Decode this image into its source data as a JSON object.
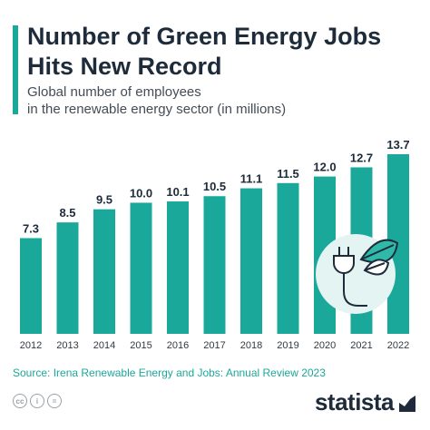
{
  "title": "Number of Green Energy Jobs Hits New Record",
  "subtitle_line1": "Global number of employees",
  "subtitle_line2": "in the renewable energy sector (in millions)",
  "source": "Source: Irena Renewable Energy and Jobs: Annual Review 2023",
  "brand": "statista",
  "colors": {
    "bar": "#1aa89a",
    "title": "#1d2b3a",
    "icon_circle": "#e3f4f2"
  },
  "icons": [
    "creative-commons-icon",
    "attribution-icon",
    "equals-icon",
    "plug-leaf-icon",
    "statista-arrow-icon"
  ],
  "cc_labels": [
    "cc",
    "i",
    "="
  ],
  "chart_data": {
    "type": "bar",
    "title": "Number of Green Energy Jobs Hits New Record",
    "categories": [
      "2012",
      "2013",
      "2014",
      "2015",
      "2016",
      "2017",
      "2018",
      "2019",
      "2020",
      "2021",
      "2022"
    ],
    "values": [
      7.3,
      8.5,
      9.5,
      10.0,
      10.1,
      10.5,
      11.1,
      11.5,
      12.0,
      12.7,
      13.7
    ],
    "value_labels": [
      "7.3",
      "8.5",
      "9.5",
      "10.0",
      "10.1",
      "10.5",
      "11.1",
      "11.5",
      "12.0",
      "12.7",
      "13.7"
    ],
    "xlabel": "",
    "ylabel": "",
    "ylim": [
      0,
      13.7
    ],
    "grid": false,
    "data_labels": true
  }
}
